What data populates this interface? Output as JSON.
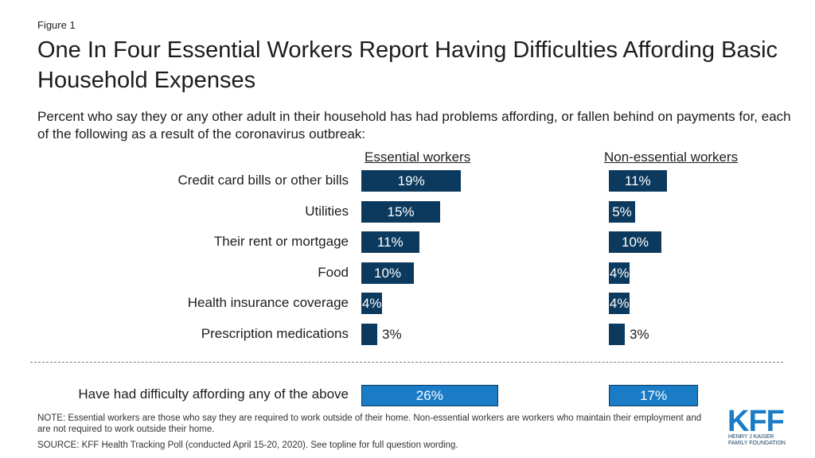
{
  "figure_label": "Figure 1",
  "title": "One In Four Essential Workers Report Having Difficulties Affording Basic Household Expenses",
  "subtitle": "Percent who say they or any other adult in their household has had problems affording, or fallen behind on payments for, each of the following as a result of the coronavirus outbreak:",
  "colors": {
    "bar": "#0c3a5e",
    "total_bar": "#1a7bc6"
  },
  "chart_data": {
    "type": "bar",
    "orientation": "horizontal",
    "series": [
      {
        "name": "Essential workers",
        "values": [
          19,
          15,
          11,
          10,
          4,
          3
        ]
      },
      {
        "name": "Non-essential workers",
        "values": [
          11,
          5,
          10,
          4,
          4,
          3
        ]
      }
    ],
    "categories": [
      "Credit card bills or other bills",
      "Utilities",
      "Their rent or mortgage",
      "Food",
      "Health insurance coverage",
      "Prescription medications"
    ],
    "labels": [
      [
        "19%",
        "15%",
        "11%",
        "10%",
        "4%",
        "3%"
      ],
      [
        "11%",
        "5%",
        "10%",
        "4%",
        "4%",
        "3%"
      ]
    ],
    "total": {
      "label": "Have had difficulty affording any of the above",
      "values": [
        26,
        17
      ],
      "labels": [
        "26%",
        "17%"
      ]
    }
  },
  "note": "NOTE: Essential workers are those who say they are required to work outside of their home. Non-essential workers are workers who maintain their employment and are not required to work outside their home.",
  "source": "SOURCE: KFF Health Tracking Poll (conducted April 15-20, 2020). See topline for full question wording.",
  "logo": {
    "name": "KFF",
    "line1": "HENRY J KAISER",
    "line2": "FAMILY FOUNDATION"
  }
}
